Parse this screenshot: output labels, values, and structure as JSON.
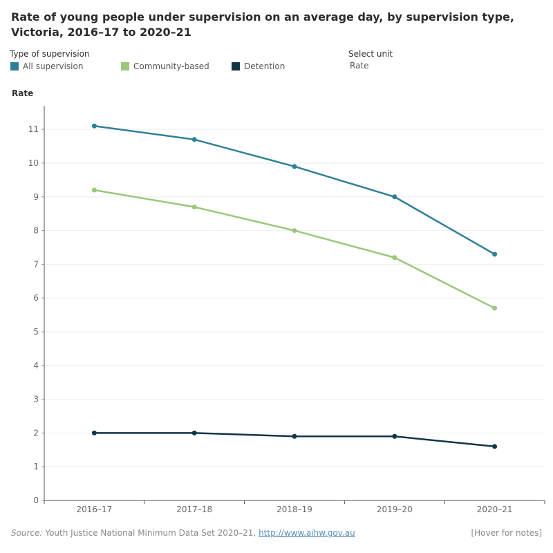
{
  "title": "Rate of young people under supervision on an average day, by supervision type, Victoria, 2016–17 to 2020–21",
  "legend": {
    "heading": "Type of supervision",
    "items": [
      {
        "label": "All supervision",
        "color": "#2f7f99"
      },
      {
        "label": "Community-based",
        "color": "#9ac77a"
      },
      {
        "label": "Detention",
        "color": "#0f3547"
      }
    ]
  },
  "unit_selector": {
    "heading": "Select unit",
    "value": "Rate"
  },
  "footer": {
    "source_label": "Source:",
    "source_text": " Youth Justice National Minimum Data Set 2020–21, ",
    "source_link": "http://www.aihw.gov.au",
    "notes": "[Hover for notes]"
  },
  "chart_data": {
    "type": "line",
    "title": "Rate of young people under supervision on an average day, by supervision type, Victoria, 2016–17 to 2020–21",
    "xlabel": "",
    "ylabel": "Rate",
    "categories": [
      "2016–17",
      "2017–18",
      "2018–19",
      "2019–20",
      "2020–21"
    ],
    "ylim": [
      0,
      11.7
    ],
    "yticks": [
      0,
      1,
      2,
      3,
      4,
      5,
      6,
      7,
      8,
      9,
      10,
      11
    ],
    "grid": true,
    "legend_position": "top-left",
    "series": [
      {
        "name": "All supervision",
        "color": "#2f7f99",
        "values": [
          11.1,
          10.7,
          9.9,
          9.0,
          7.3
        ]
      },
      {
        "name": "Community-based",
        "color": "#9ac77a",
        "values": [
          9.2,
          8.7,
          8.0,
          7.2,
          5.7
        ]
      },
      {
        "name": "Detention",
        "color": "#0f3547",
        "values": [
          2.0,
          2.0,
          1.9,
          1.9,
          1.6
        ]
      }
    ]
  }
}
